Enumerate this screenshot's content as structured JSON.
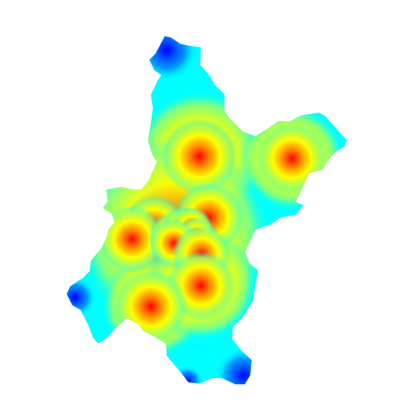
{
  "map": {
    "type": "distance-heatmap",
    "colormap": [
      "#ff0000",
      "#ff8000",
      "#ffff00",
      "#00ffff",
      "#0000ff"
    ],
    "background": "#ffffff",
    "hotspot_count": 13
  }
}
